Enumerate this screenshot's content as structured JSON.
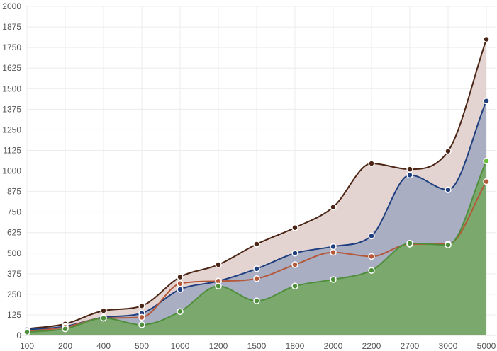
{
  "chart_data": {
    "type": "area",
    "categories": [
      "100",
      "200",
      "400",
      "500",
      "1000",
      "1200",
      "1500",
      "1800",
      "2000",
      "2200",
      "2700",
      "3000",
      "5000"
    ],
    "ylim": [
      0,
      2000
    ],
    "yticks": [
      "0",
      "125",
      "250",
      "375",
      "500",
      "625",
      "750",
      "875",
      "1000",
      "1125",
      "1250",
      "1375",
      "1500",
      "1625",
      "1750",
      "1875",
      "2000"
    ],
    "grid": true,
    "title": "",
    "xlabel": "",
    "ylabel": "",
    "series": [
      {
        "key": "series-brown",
        "values": [
          40,
          70,
          150,
          180,
          355,
          430,
          555,
          655,
          780,
          1045,
          1010,
          1120,
          1800
        ],
        "line_color": "#4a2414",
        "fill_color": "#e3d4d1",
        "filled": true
      },
      {
        "key": "series-blue",
        "values": [
          35,
          55,
          110,
          135,
          280,
          330,
          405,
          500,
          540,
          605,
          975,
          885,
          1425
        ],
        "line_color": "#1f3f7f",
        "fill_color": "#a9aec3",
        "filled": true
      },
      {
        "key": "series-orange",
        "values": [
          25,
          50,
          105,
          110,
          315,
          330,
          345,
          430,
          505,
          480,
          555,
          555,
          935
        ],
        "line_color": "#b5583a",
        "fill_color": "none",
        "filled": false
      },
      {
        "key": "series-green",
        "values": [
          20,
          40,
          105,
          65,
          145,
          300,
          210,
          300,
          340,
          395,
          560,
          550,
          1060
        ],
        "line_color": "#4f8f3c",
        "fill_color": "#7aa86d",
        "filled": true
      }
    ]
  }
}
